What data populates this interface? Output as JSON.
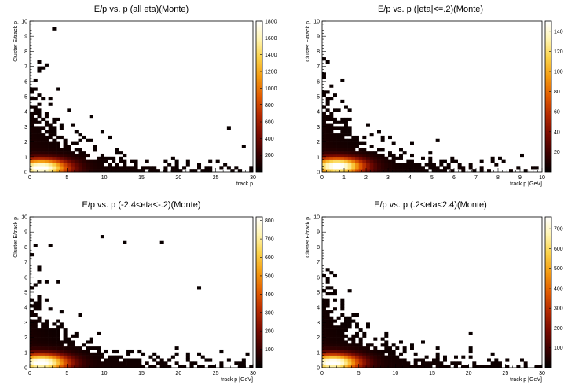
{
  "colorscale": {
    "name": "dark-body-radiator",
    "stops": [
      "#000000",
      "#3a0000",
      "#7a0a00",
      "#b52a00",
      "#e05a00",
      "#f39a10",
      "#fad24a",
      "#fff4b0",
      "#ffffff"
    ]
  },
  "chart_data": [
    {
      "type": "heatmap",
      "title": "E/p vs. p (all eta)(Monte)",
      "xlabel": "track p",
      "ylabel": "Cluster E/track p",
      "xlim": [
        0,
        30
      ],
      "ylim": [
        0,
        10
      ],
      "x_ticks": [
        0,
        5,
        10,
        15,
        20,
        25,
        30
      ],
      "y_ticks": [
        0,
        1,
        2,
        3,
        4,
        5,
        6,
        7,
        8,
        9,
        10
      ],
      "z_range": [
        0,
        1800
      ],
      "z_ticks": [
        200,
        400,
        600,
        800,
        1000,
        1200,
        1400,
        1600,
        1800
      ],
      "peak": {
        "x": 1.5,
        "y": 0.3,
        "z": 1800
      },
      "x_bins": 60,
      "y_bins": 50
    },
    {
      "type": "heatmap",
      "title": "E/p vs. p (|eta|<=.2)(Monte)",
      "xlabel": "track p [GeV]",
      "ylabel": "Cluster E/track p",
      "xlim": [
        0,
        10
      ],
      "ylim": [
        0,
        10
      ],
      "x_ticks": [
        0,
        1,
        2,
        3,
        4,
        5,
        6,
        7,
        8,
        9,
        10
      ],
      "y_ticks": [
        0,
        1,
        2,
        3,
        4,
        5,
        6,
        7,
        8,
        9,
        10
      ],
      "z_range": [
        0,
        150
      ],
      "z_ticks": [
        20,
        40,
        60,
        80,
        100,
        120,
        140
      ],
      "peak": {
        "x": 0.7,
        "y": 0.4,
        "z": 150
      },
      "x_bins": 60,
      "y_bins": 50
    },
    {
      "type": "heatmap",
      "title": "E/p vs. p (-2.4<eta<-.2)(Monte)",
      "xlabel": "track p [GeV]",
      "ylabel": "Cluster E/track p",
      "xlim": [
        0,
        30
      ],
      "ylim": [
        0,
        10
      ],
      "x_ticks": [
        0,
        5,
        10,
        15,
        20,
        25,
        30
      ],
      "y_ticks": [
        0,
        1,
        2,
        3,
        4,
        5,
        6,
        7,
        8,
        9,
        10
      ],
      "z_range": [
        0,
        820
      ],
      "z_ticks": [
        100,
        200,
        300,
        400,
        500,
        600,
        700,
        800
      ],
      "peak": {
        "x": 1.5,
        "y": 0.35,
        "z": 820
      },
      "x_bins": 60,
      "y_bins": 50
    },
    {
      "type": "heatmap",
      "title": "E/p vs. p (.2<eta<2.4)(Monte)",
      "xlabel": "track p [GeV]",
      "ylabel": "Cluster E/track p",
      "xlim": [
        0,
        30
      ],
      "ylim": [
        0,
        10
      ],
      "x_ticks": [
        0,
        5,
        10,
        15,
        20,
        25,
        30
      ],
      "y_ticks": [
        0,
        1,
        2,
        3,
        4,
        5,
        6,
        7,
        8,
        9,
        10
      ],
      "z_range": [
        0,
        760
      ],
      "z_ticks": [
        100,
        200,
        300,
        400,
        500,
        600,
        700
      ],
      "peak": {
        "x": 1.5,
        "y": 0.35,
        "z": 760
      },
      "x_bins": 60,
      "y_bins": 50
    }
  ]
}
